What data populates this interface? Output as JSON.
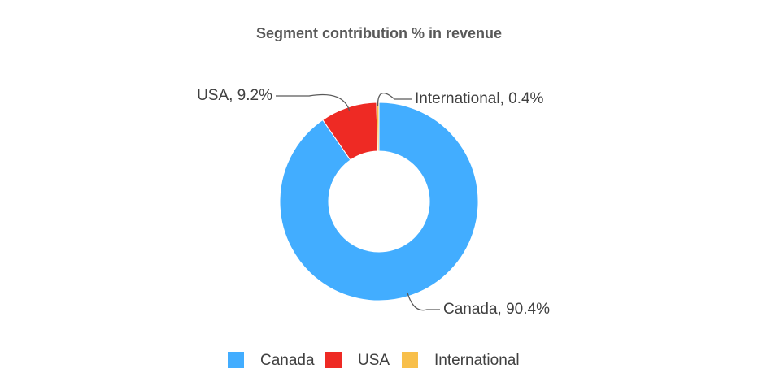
{
  "chart_data": {
    "type": "donut",
    "title": "Segment contribution % in revenue",
    "categories": [
      "Canada",
      "USA",
      "International"
    ],
    "values": [
      90.4,
      9.2,
      0.4
    ],
    "value_labels": [
      "Canada, 90.4%",
      "USA, 9.2%",
      "International, 0.4%"
    ],
    "colors": [
      "#42adff",
      "#ee2a24",
      "#f8bf4a"
    ],
    "legend": "bottom"
  }
}
